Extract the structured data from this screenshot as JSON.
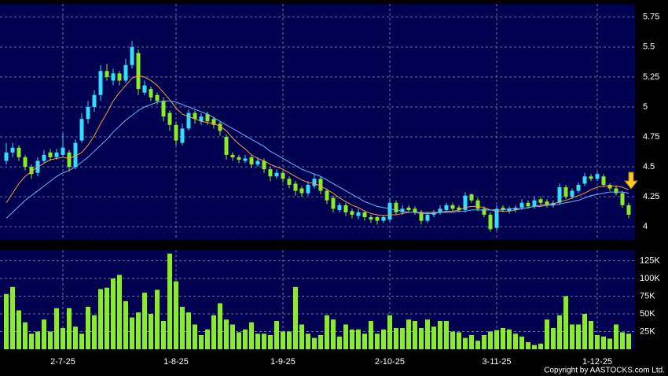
{
  "chart_data": {
    "type": "candlestick",
    "ylim": [
      3.89,
      5.86
    ],
    "yticks": [
      4,
      4.25,
      4.5,
      4.75,
      5,
      5.25,
      5.5,
      5.75
    ],
    "xticks": [
      {
        "value": 9,
        "label": "2-7-25"
      },
      {
        "value": 27,
        "label": "1-8-25"
      },
      {
        "value": 44,
        "label": "1-9-25"
      },
      {
        "value": 61,
        "label": "2-10-25"
      },
      {
        "value": 78,
        "label": "3-11-25"
      },
      {
        "value": 94,
        "label": "1-12-25"
      }
    ],
    "grid": true,
    "up_color": "#33ddff",
    "down_color": "#88ee22",
    "ohlc": [
      [
        4.55,
        4.7,
        4.52,
        4.62
      ],
      [
        4.62,
        4.7,
        4.58,
        4.66
      ],
      [
        4.66,
        4.68,
        4.55,
        4.58
      ],
      [
        4.58,
        4.6,
        4.47,
        4.5
      ],
      [
        4.5,
        4.52,
        4.4,
        4.44
      ],
      [
        4.45,
        4.58,
        4.42,
        4.55
      ],
      [
        4.55,
        4.64,
        4.53,
        4.6
      ],
      [
        4.62,
        4.65,
        4.55,
        4.58
      ],
      [
        4.58,
        4.65,
        4.56,
        4.62
      ],
      [
        4.6,
        4.78,
        4.58,
        4.66
      ],
      [
        4.62,
        4.64,
        4.46,
        4.5
      ],
      [
        4.5,
        4.73,
        4.48,
        4.7
      ],
      [
        4.72,
        4.95,
        4.7,
        4.9
      ],
      [
        4.9,
        5.05,
        4.86,
        5.0
      ],
      [
        5.0,
        5.14,
        4.96,
        5.1
      ],
      [
        5.1,
        5.35,
        5.05,
        5.3
      ],
      [
        5.3,
        5.36,
        5.22,
        5.25
      ],
      [
        5.22,
        5.32,
        5.18,
        5.28
      ],
      [
        5.28,
        5.3,
        5.18,
        5.22
      ],
      [
        5.22,
        5.4,
        5.2,
        5.35
      ],
      [
        5.35,
        5.55,
        5.32,
        5.5
      ],
      [
        5.45,
        5.48,
        5.1,
        5.15
      ],
      [
        5.12,
        5.22,
        5.1,
        5.18
      ],
      [
        5.15,
        5.17,
        5.05,
        5.08
      ],
      [
        5.1,
        5.12,
        5.02,
        5.05
      ],
      [
        5.05,
        5.08,
        4.88,
        4.92
      ],
      [
        4.95,
        4.97,
        4.8,
        4.85
      ],
      [
        4.85,
        4.88,
        4.68,
        4.72
      ],
      [
        4.7,
        4.86,
        4.68,
        4.82
      ],
      [
        4.82,
        4.98,
        4.8,
        4.95
      ],
      [
        4.95,
        4.97,
        4.86,
        4.9
      ],
      [
        4.88,
        4.95,
        4.85,
        4.92
      ],
      [
        4.94,
        4.96,
        4.85,
        4.88
      ],
      [
        4.9,
        4.92,
        4.82,
        4.85
      ],
      [
        4.86,
        4.88,
        4.76,
        4.8
      ],
      [
        4.75,
        4.77,
        4.56,
        4.6
      ],
      [
        4.6,
        4.62,
        4.55,
        4.58
      ],
      [
        4.58,
        4.6,
        4.53,
        4.56
      ],
      [
        4.55,
        4.6,
        4.53,
        4.57
      ],
      [
        4.58,
        4.6,
        4.49,
        4.52
      ],
      [
        4.52,
        4.58,
        4.5,
        4.55
      ],
      [
        4.55,
        4.57,
        4.45,
        4.48
      ],
      [
        4.48,
        4.5,
        4.38,
        4.42
      ],
      [
        4.42,
        4.48,
        4.4,
        4.45
      ],
      [
        4.45,
        4.47,
        4.37,
        4.4
      ],
      [
        4.4,
        4.42,
        4.32,
        4.35
      ],
      [
        4.36,
        4.38,
        4.26,
        4.3
      ],
      [
        4.32,
        4.34,
        4.25,
        4.28
      ],
      [
        4.28,
        4.38,
        4.26,
        4.35
      ],
      [
        4.34,
        4.44,
        4.32,
        4.4
      ],
      [
        4.4,
        4.42,
        4.27,
        4.3
      ],
      [
        4.3,
        4.32,
        4.19,
        4.22
      ],
      [
        4.24,
        4.26,
        4.12,
        4.15
      ],
      [
        4.14,
        4.2,
        4.12,
        4.18
      ],
      [
        4.18,
        4.2,
        4.09,
        4.12
      ],
      [
        4.13,
        4.15,
        4.07,
        4.1
      ],
      [
        4.09,
        4.15,
        4.06,
        4.12
      ],
      [
        4.12,
        4.14,
        4.05,
        4.08
      ],
      [
        4.08,
        4.1,
        4.03,
        4.06
      ],
      [
        4.08,
        4.09,
        4.02,
        4.05
      ],
      [
        4.05,
        4.1,
        4.03,
        4.08
      ],
      [
        4.06,
        4.24,
        4.04,
        4.2
      ],
      [
        4.2,
        4.22,
        4.1,
        4.12
      ],
      [
        4.12,
        4.18,
        4.1,
        4.15
      ],
      [
        4.16,
        4.18,
        4.12,
        4.14
      ],
      [
        4.15,
        4.17,
        4.1,
        4.12
      ],
      [
        4.12,
        4.14,
        4.02,
        4.05
      ],
      [
        4.05,
        4.12,
        4.03,
        4.1
      ],
      [
        4.1,
        4.14,
        4.08,
        4.12
      ],
      [
        4.12,
        4.18,
        4.1,
        4.15
      ],
      [
        4.14,
        4.2,
        4.12,
        4.18
      ],
      [
        4.18,
        4.2,
        4.13,
        4.15
      ],
      [
        4.16,
        4.18,
        4.12,
        4.14
      ],
      [
        4.14,
        4.29,
        4.12,
        4.26
      ],
      [
        4.27,
        4.28,
        4.2,
        4.22
      ],
      [
        4.22,
        4.24,
        4.13,
        4.15
      ],
      [
        4.15,
        4.17,
        4.08,
        4.1
      ],
      [
        4.1,
        4.12,
        3.96,
        3.98
      ],
      [
        3.99,
        4.18,
        3.97,
        4.15
      ],
      [
        4.16,
        4.18,
        4.12,
        4.14
      ],
      [
        4.13,
        4.17,
        4.11,
        4.15
      ],
      [
        4.14,
        4.18,
        4.12,
        4.16
      ],
      [
        4.16,
        4.23,
        4.14,
        4.2
      ],
      [
        4.2,
        4.22,
        4.15,
        4.17
      ],
      [
        4.17,
        4.25,
        4.15,
        4.22
      ],
      [
        4.23,
        4.25,
        4.18,
        4.2
      ],
      [
        4.21,
        4.23,
        4.16,
        4.18
      ],
      [
        4.18,
        4.22,
        4.16,
        4.2
      ],
      [
        4.2,
        4.36,
        4.18,
        4.33
      ],
      [
        4.33,
        4.35,
        4.23,
        4.25
      ],
      [
        4.25,
        4.32,
        4.23,
        4.3
      ],
      [
        4.3,
        4.37,
        4.28,
        4.35
      ],
      [
        4.36,
        4.45,
        4.34,
        4.42
      ],
      [
        4.42,
        4.44,
        4.38,
        4.4
      ],
      [
        4.4,
        4.46,
        4.38,
        4.44
      ],
      [
        4.42,
        4.44,
        4.33,
        4.35
      ],
      [
        4.35,
        4.36,
        4.3,
        4.32
      ],
      [
        4.32,
        4.34,
        4.26,
        4.28
      ],
      [
        4.28,
        4.3,
        4.16,
        4.18
      ],
      [
        4.18,
        4.2,
        4.07,
        4.1
      ]
    ],
    "moving_averages": [
      {
        "color": "#ff9933",
        "values": [
          4.2,
          4.28,
          4.36,
          4.42,
          4.46,
          4.5,
          4.53,
          4.56,
          4.57,
          4.58,
          4.57,
          4.59,
          4.62,
          4.68,
          4.76,
          4.86,
          4.95,
          5.05,
          5.12,
          5.18,
          5.24,
          5.26,
          5.25,
          5.22,
          5.18,
          5.12,
          5.06,
          4.99,
          4.94,
          4.92,
          4.9,
          4.88,
          4.87,
          4.86,
          4.84,
          4.8,
          4.74,
          4.69,
          4.65,
          4.6,
          4.57,
          4.55,
          4.52,
          4.5,
          4.48,
          4.45,
          4.42,
          4.39,
          4.37,
          4.36,
          4.34,
          4.31,
          4.28,
          4.24,
          4.21,
          4.18,
          4.16,
          4.13,
          4.11,
          4.1,
          4.09,
          4.1,
          4.1,
          4.11,
          4.12,
          4.12,
          4.12,
          4.12,
          4.12,
          4.12,
          4.13,
          4.13,
          4.14,
          4.16,
          4.17,
          4.17,
          4.16,
          4.14,
          4.13,
          4.13,
          4.13,
          4.14,
          4.15,
          4.16,
          4.17,
          4.18,
          4.19,
          4.19,
          4.21,
          4.22,
          4.24,
          4.26,
          4.28,
          4.31,
          4.33,
          4.34,
          4.34,
          4.34,
          4.33,
          4.31
        ]
      },
      {
        "color": "#66bbff",
        "values": [
          4.07,
          4.12,
          4.17,
          4.22,
          4.26,
          4.3,
          4.34,
          4.38,
          4.42,
          4.45,
          4.47,
          4.5,
          4.54,
          4.58,
          4.63,
          4.68,
          4.73,
          4.79,
          4.84,
          4.89,
          4.93,
          4.97,
          5.0,
          5.02,
          5.04,
          5.05,
          5.05,
          5.04,
          5.02,
          5.0,
          4.98,
          4.96,
          4.94,
          4.91,
          4.88,
          4.85,
          4.82,
          4.79,
          4.76,
          4.73,
          4.7,
          4.67,
          4.63,
          4.6,
          4.57,
          4.54,
          4.51,
          4.48,
          4.46,
          4.44,
          4.42,
          4.39,
          4.36,
          4.33,
          4.3,
          4.27,
          4.24,
          4.21,
          4.19,
          4.17,
          4.16,
          4.15,
          4.14,
          4.13,
          4.12,
          4.12,
          4.11,
          4.11,
          4.11,
          4.12,
          4.12,
          4.12,
          4.13,
          4.13,
          4.14,
          4.14,
          4.14,
          4.14,
          4.14,
          4.14,
          4.15,
          4.15,
          4.15,
          4.16,
          4.17,
          4.17,
          4.18,
          4.18,
          4.19,
          4.2,
          4.21,
          4.22,
          4.24,
          4.26,
          4.27,
          4.28,
          4.29,
          4.29,
          4.29,
          4.28
        ]
      }
    ],
    "volume": {
      "color": "#88ee22",
      "ylim": [
        0,
        140000
      ],
      "yticks": [
        {
          "value": 25000,
          "label": "25K"
        },
        {
          "value": 50000,
          "label": "50K"
        },
        {
          "value": 75000,
          "label": "75K"
        },
        {
          "value": 100000,
          "label": "100K"
        },
        {
          "value": 125000,
          "label": "125K"
        }
      ],
      "values": [
        78000,
        88000,
        55000,
        38000,
        22000,
        25000,
        42000,
        25000,
        58000,
        30000,
        58000,
        32000,
        22000,
        60000,
        48000,
        85000,
        87000,
        100000,
        105000,
        68000,
        45000,
        52000,
        80000,
        50000,
        84000,
        40000,
        135000,
        96000,
        60000,
        52000,
        35000,
        20000,
        28000,
        48000,
        65000,
        42000,
        35000,
        24000,
        28000,
        38000,
        22000,
        22000,
        20000,
        40000,
        25000,
        25000,
        88000,
        35000,
        22000,
        16000,
        20000,
        48000,
        42000,
        18000,
        35000,
        28000,
        28000,
        22000,
        40000,
        22000,
        28000,
        48000,
        30000,
        30000,
        42000,
        40000,
        30000,
        42000,
        32000,
        40000,
        40000,
        25000,
        24000,
        16000,
        20000,
        12000,
        20000,
        25000,
        27000,
        30000,
        28000,
        22000,
        18000,
        10000,
        6000,
        8000,
        42000,
        30000,
        48000,
        75000,
        35000,
        35000,
        50000,
        40000,
        20000,
        18000,
        15000,
        35000,
        24000,
        22000
      ]
    },
    "footer": "Copyright by AASTOCKS.com Ltd."
  }
}
